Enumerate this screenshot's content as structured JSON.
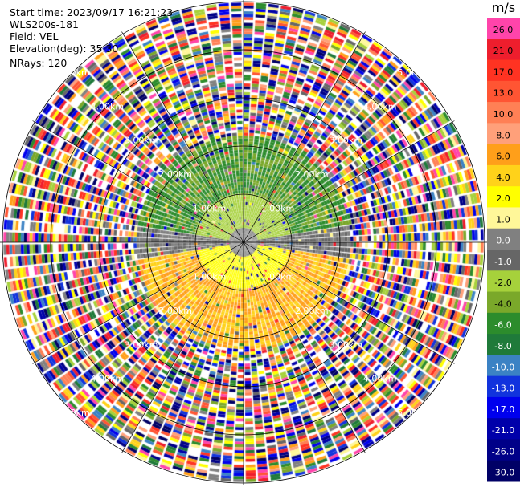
{
  "header": {
    "start_time": "Start time: 2023/09/17 16:21:23",
    "site": "WLS200s-181",
    "field": "Field: VEL",
    "elevation": "Elevation(deg): 35.30",
    "nrays": "NRays: 120"
  },
  "chart_data": {
    "type": "heatmap",
    "projection": "polar (PPI)",
    "field": "VEL",
    "units": "m/s",
    "n_rays": 120,
    "range_rings_km": [
      1.0,
      2.0,
      3.0,
      4.0,
      5.0
    ],
    "ring_labels": [
      "1.00km",
      "2.00km",
      "3.00km",
      "4.00km",
      "5.00km"
    ],
    "max_range_km": 5.0,
    "colorbar": {
      "label": "m/s",
      "ticks": [
        "26.0",
        "21.0",
        "17.0",
        "13.0",
        "10.0",
        "8.0",
        "6.0",
        "4.0",
        "2.0",
        "1.0",
        "0.0",
        "-1.0",
        "-2.0",
        "-4.0",
        "-6.0",
        "-8.0",
        "-10.0",
        "-13.0",
        "-17.0",
        "-21.0",
        "-26.0",
        "-30.0"
      ],
      "colors": [
        "#ff44aa",
        "#ee1e2d",
        "#ff3322",
        "#ff5533",
        "#ff8055",
        "#ffa07a",
        "#ff9f1a",
        "#ffd21a",
        "#ffff00",
        "#fff799",
        "#808080",
        "#666666",
        "#a6d13b",
        "#7aa82a",
        "#2c8c2c",
        "#1f7a3a",
        "#3b82c4",
        "#1133dd",
        "#0000ee",
        "#0000aa",
        "#000088",
        "#000066"
      ]
    }
  }
}
